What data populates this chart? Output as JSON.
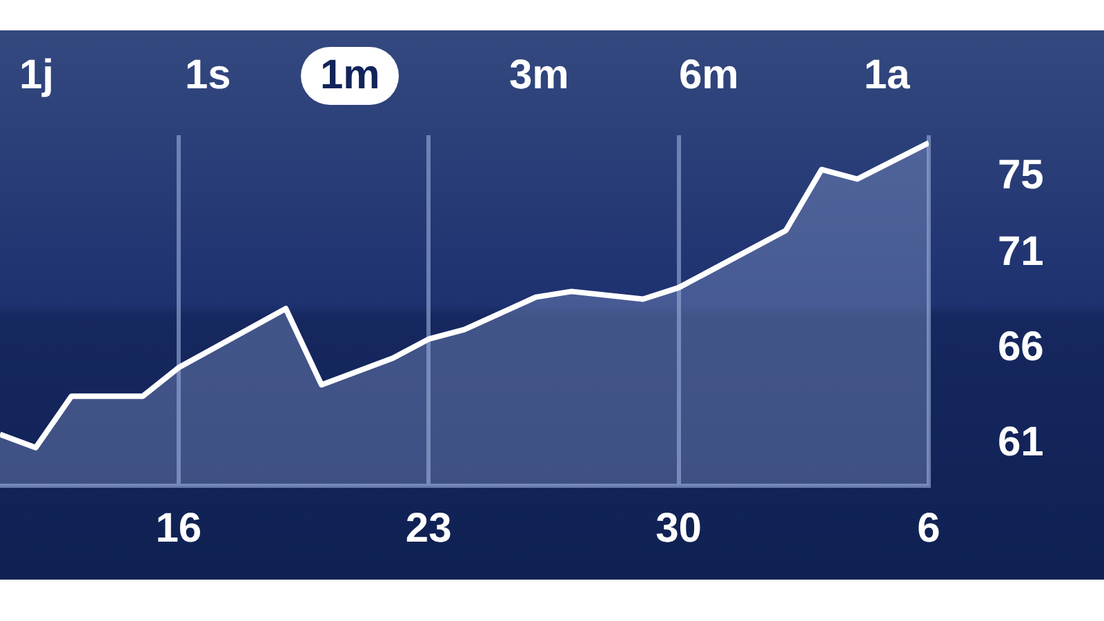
{
  "chart_data": {
    "type": "area",
    "annotations": [
      "1j",
      "1s",
      "1m",
      "3m",
      "6m",
      "1a"
    ],
    "x": [
      "--03-11",
      "--03-12",
      "--03-13",
      "--03-15",
      "--03-16",
      "--03-19",
      "--03-20",
      "--03-22",
      "--03-23",
      "--03-24",
      "--03-26",
      "--03-27",
      "--03-29",
      "--03-30",
      "--04-02",
      "--04-03",
      "--04-04",
      "--04-06"
    ],
    "series": [
      {
        "color": "#ffffff",
        "values": [
          61.5,
          60.8,
          63.5,
          63.5,
          65.0,
          68.1,
          64.1,
          65.5,
          66.5,
          67.0,
          68.7,
          69.0,
          68.6,
          69.2,
          72.2,
          75.4,
          74.9,
          76.8
        ]
      }
    ],
    "xlim": [
      "--03-11",
      "--04-06"
    ],
    "xticks": [
      {
        "value": "--03-16",
        "label": "16"
      },
      {
        "value": "--03-23",
        "label": "23"
      },
      {
        "value": "--03-30",
        "label": "30"
      },
      {
        "value": "--04-06",
        "label": "6"
      }
    ],
    "ylim": [
      58.8,
      77.2
    ],
    "yticks": [
      61,
      66,
      71,
      75
    ],
    "grid": "x",
    "marker": "none",
    "line_style": "solid",
    "legend": false
  }
}
